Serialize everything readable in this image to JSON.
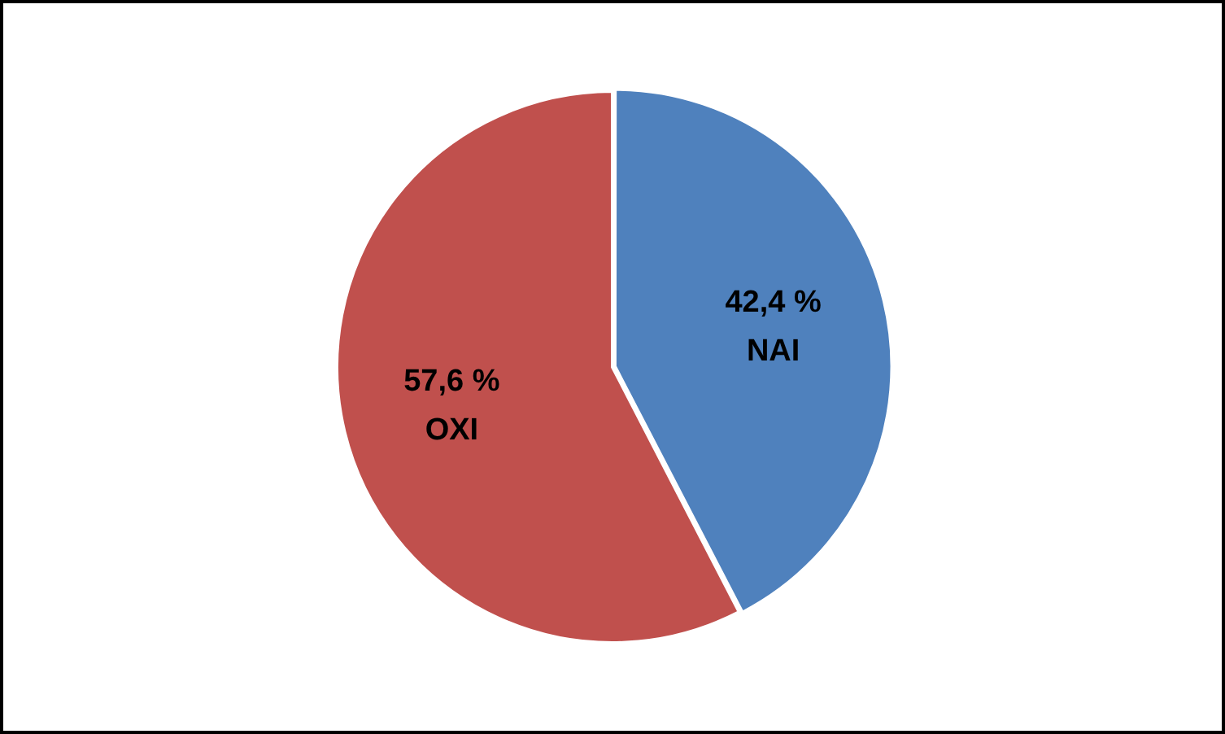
{
  "chart_data": {
    "type": "pie",
    "categories": [
      "NAI",
      "OXI"
    ],
    "values": [
      42.4,
      57.6
    ],
    "colors": [
      "#4f81bd",
      "#c0504d"
    ],
    "value_labels": [
      "42,4 %",
      "57,6 %"
    ],
    "legend": false
  }
}
